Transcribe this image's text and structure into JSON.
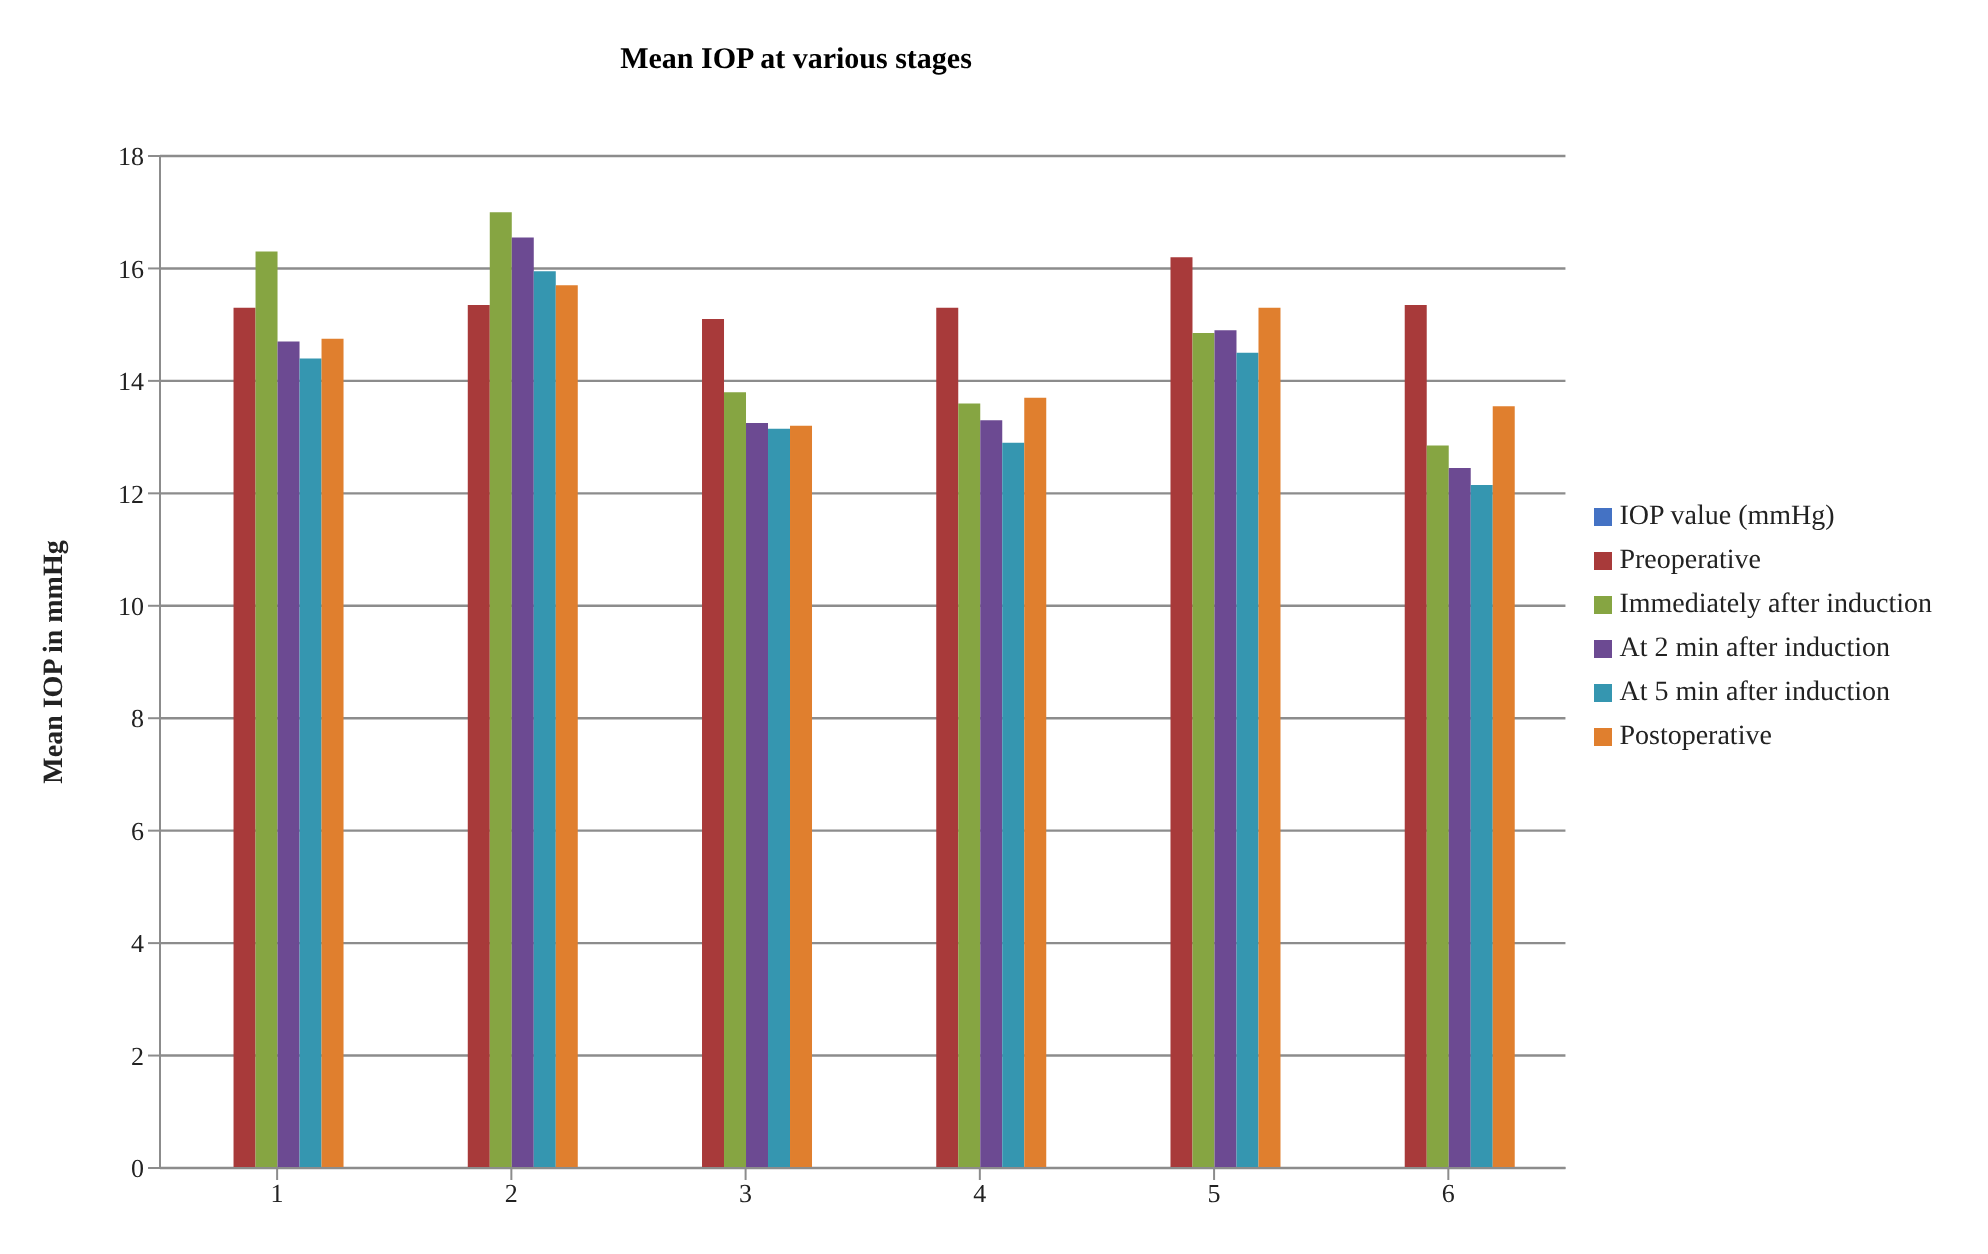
{
  "chart_data": {
    "type": "bar",
    "title": "Mean IOP at various stages",
    "ylabel": "Mean IOP in mmHg",
    "categories": [
      "1",
      "2",
      "3",
      "4",
      "5",
      "6"
    ],
    "series": [
      {
        "name": "IOP value (mmHg)",
        "color": "#4472c4",
        "values": [
          null,
          null,
          null,
          null,
          null,
          null
        ]
      },
      {
        "name": "Preoperative",
        "color": "#a83a3a",
        "values": [
          15.3,
          15.35,
          15.1,
          15.3,
          16.2,
          15.35
        ]
      },
      {
        "name": "Immediately after induction",
        "color": "#86a542",
        "values": [
          16.3,
          17.0,
          13.8,
          13.6,
          14.85,
          12.85
        ]
      },
      {
        "name": "At 2 min after induction",
        "color": "#6c4a92",
        "values": [
          14.7,
          16.55,
          13.25,
          13.3,
          14.9,
          12.45
        ]
      },
      {
        "name": "At 5 min after induction",
        "color": "#3596b0",
        "values": [
          14.4,
          15.95,
          13.15,
          12.9,
          14.5,
          12.15
        ]
      },
      {
        "name": "Postoperative",
        "color": "#e07f2e",
        "values": [
          14.75,
          15.7,
          13.2,
          13.7,
          15.3,
          13.55
        ]
      }
    ],
    "ylim": [
      0,
      18
    ],
    "yticks": [
      0,
      2,
      4,
      6,
      8,
      10,
      12,
      14,
      16,
      18
    ],
    "grid": "y",
    "legend": "right"
  }
}
